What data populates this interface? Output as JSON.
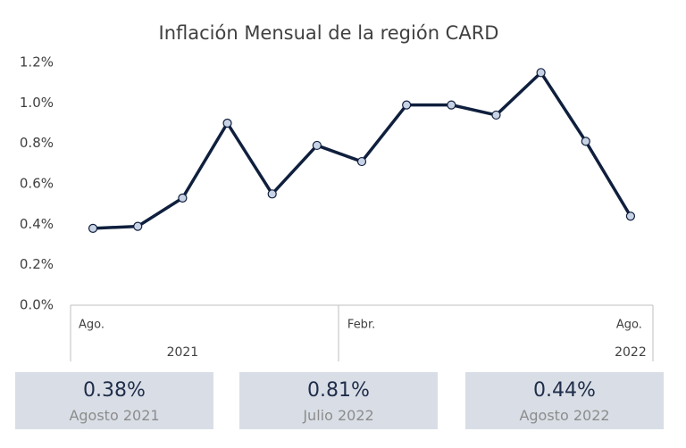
{
  "chart_data": {
    "type": "line",
    "title": "Inflación Mensual de la región CARD",
    "categories": [
      "Ago.",
      null,
      null,
      null,
      null,
      null,
      "Febr.",
      null,
      null,
      null,
      null,
      null,
      "Ago."
    ],
    "years": [
      null,
      null,
      "2021",
      null,
      null,
      null,
      null,
      null,
      null,
      null,
      null,
      null,
      "2022"
    ],
    "values": [
      0.38,
      0.39,
      0.53,
      0.9,
      0.55,
      0.79,
      0.71,
      0.99,
      0.99,
      0.94,
      1.15,
      0.81,
      0.44
    ],
    "color": "#0f1f3d",
    "marker_color": "#c9d3e6",
    "ylim": [
      0,
      1.2
    ],
    "yticks": [
      {
        "value": 0,
        "label": "0.0%"
      },
      {
        "value": 0.2,
        "label": "0.2%"
      },
      {
        "value": 0.4,
        "label": "0.4%"
      },
      {
        "value": 0.6,
        "label": "0.6%"
      },
      {
        "value": 0.8,
        "label": "0.8%"
      },
      {
        "value": 1.0,
        "label": "1.0%"
      },
      {
        "value": 1.2,
        "label": "1.2%"
      }
    ],
    "grid": false
  },
  "cards": [
    {
      "value": "0.38%",
      "label": "Agosto 2021"
    },
    {
      "value": "0.81%",
      "label": "Julio 2022"
    },
    {
      "value": "0.44%",
      "label": "Agosto 2022"
    }
  ]
}
